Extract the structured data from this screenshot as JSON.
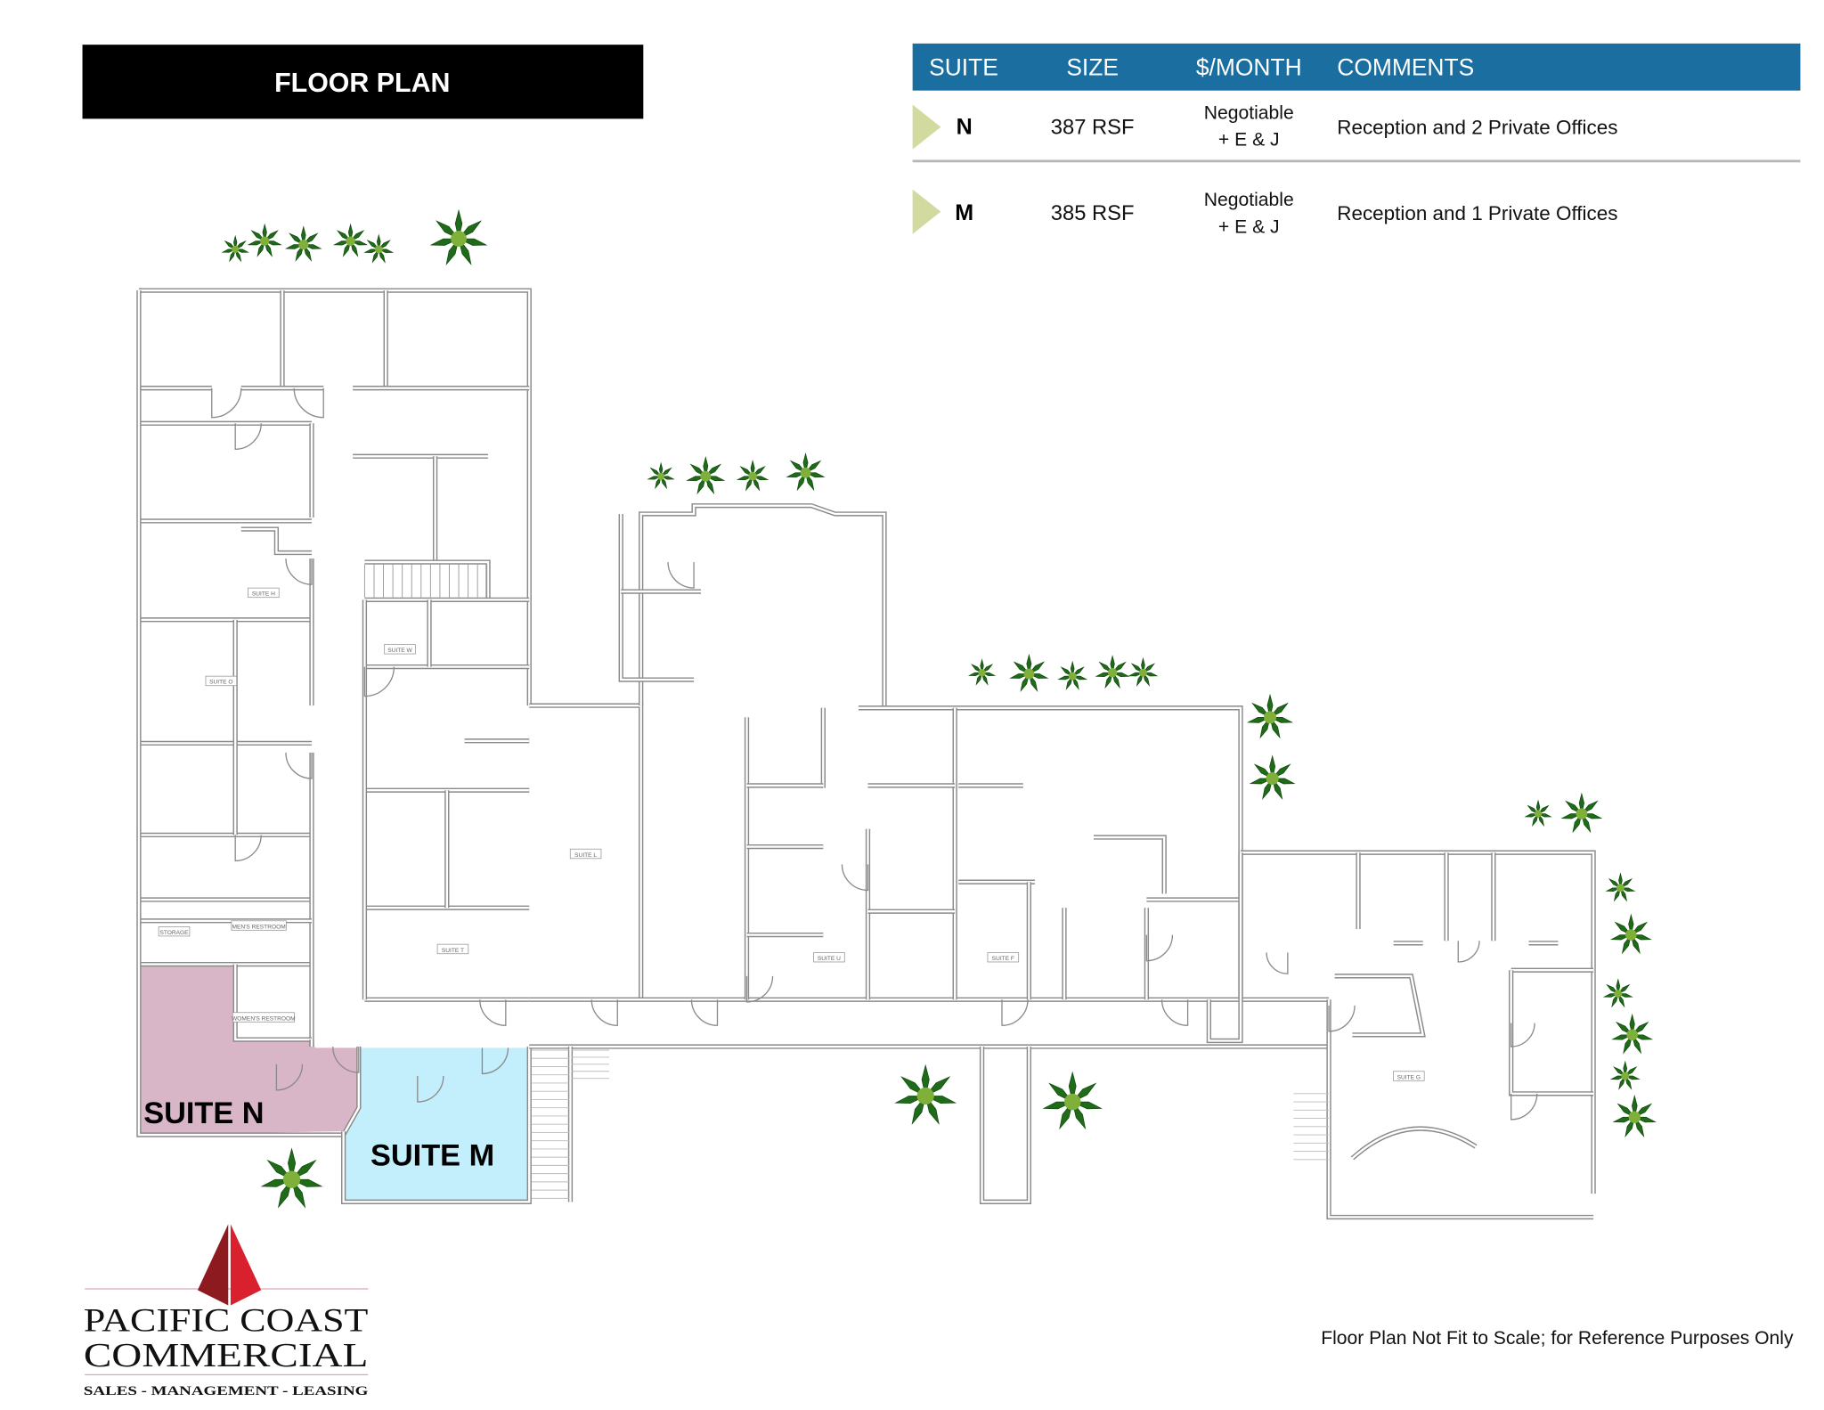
{
  "header": {
    "title": "FLOOR PLAN"
  },
  "table": {
    "header_color": "#1b6ea0",
    "marker_color": "#d3daa0",
    "columns": [
      "SUITE",
      "SIZE",
      "$/MONTH",
      "COMMENTS"
    ],
    "rows": [
      {
        "suite": "N",
        "size": "387 RSF",
        "rent_line1": "Negotiable",
        "rent_line2": "+ E & J",
        "comments": "Reception and 2 Private Offices"
      },
      {
        "suite": "M",
        "size": "385 RSF",
        "rent_line1": "Negotiable",
        "rent_line2": "+ E & J",
        "comments": "Reception and 1 Private Offices"
      }
    ]
  },
  "plan": {
    "highlighted_suites": [
      {
        "label": "SUITE N",
        "color": "#d9b5c8"
      },
      {
        "label": "SUITE M",
        "color": "#c3eefb"
      }
    ],
    "room_labels": [
      "SUITE H",
      "SUITE O",
      "SUITE W",
      "STORAGE",
      "MEN'S RESTROOM",
      "WOMEN'S RESTROOM",
      "SUITE T",
      "SUITE U",
      "SUITE L",
      "SUITE F",
      "SUITE G"
    ],
    "tree_color": "#1f6b1a"
  },
  "logo": {
    "line1": "PACIFIC COAST",
    "line2": "COMMERCIAL",
    "tagline": "SALES - MANAGEMENT - LEASING"
  },
  "footer": {
    "note": "Floor Plan Not Fit to Scale; for Reference Purposes Only"
  }
}
